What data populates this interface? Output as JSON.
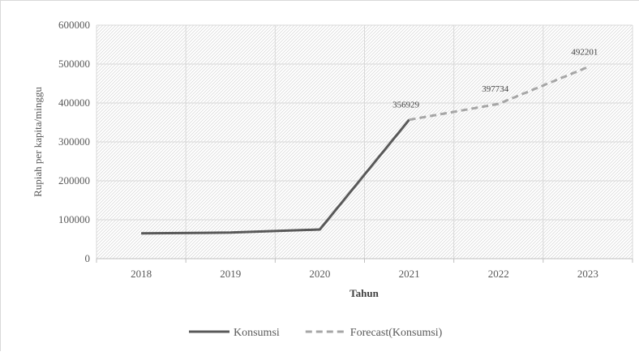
{
  "chart_data": {
    "type": "line",
    "categories": [
      "2018",
      "2019",
      "2020",
      "2021",
      "2022",
      "2023"
    ],
    "xlabel": "Tahun",
    "ylabel": "Rupiah per kapita/minggu",
    "ylim": [
      0,
      600000
    ],
    "yticks": [
      0,
      100000,
      200000,
      300000,
      400000,
      500000,
      600000
    ],
    "grid": true,
    "plot_background": "diagonal hatch",
    "legend_position": "bottom",
    "series": [
      {
        "name": "Konsumsi",
        "style": "solid",
        "color": "#595959",
        "values": [
          65000,
          67000,
          75000,
          356929,
          null,
          null
        ]
      },
      {
        "name": "Forecast(Konsumsi)",
        "style": "dashed",
        "color": "#a6a6a6",
        "values": [
          null,
          null,
          null,
          356929,
          397734,
          492201
        ]
      }
    ],
    "data_labels": [
      {
        "category": "2021",
        "value": 356929,
        "text": "356929"
      },
      {
        "category": "2022",
        "value": 397734,
        "text": "397734"
      },
      {
        "category": "2023",
        "value": 492201,
        "text": "492201"
      }
    ]
  }
}
